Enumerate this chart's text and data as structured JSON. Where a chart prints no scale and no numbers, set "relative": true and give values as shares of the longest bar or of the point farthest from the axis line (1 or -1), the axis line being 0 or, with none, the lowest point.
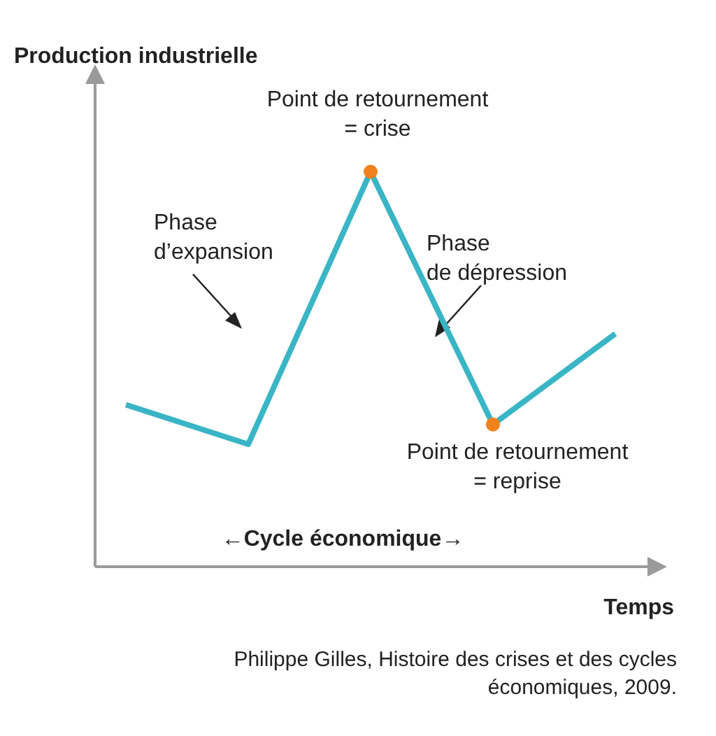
{
  "chart_data": {
    "type": "line",
    "ylabel": "Production industrielle",
    "xlabel": "Temps",
    "relative": true,
    "marker": "none",
    "categories": [
      null,
      null,
      null,
      null,
      null
    ],
    "series": [
      {
        "color": "#3ab5c6",
        "values": [
          0.41,
          0.31,
          1,
          0.36,
          0.59
        ],
        "colors": [
          null,
          null,
          "#f0821e",
          "#f0821e",
          null
        ]
      }
    ],
    "annotations": [
      "Point de retournement\n= crise",
      "Phase\nd’expansion",
      "Phase\nde dépression",
      "Point de retournement\n= reprise",
      "←Cycle économique→",
      "Philippe Gilles, Histoire des crises et des cycles\néconomiques, 2009."
    ]
  }
}
